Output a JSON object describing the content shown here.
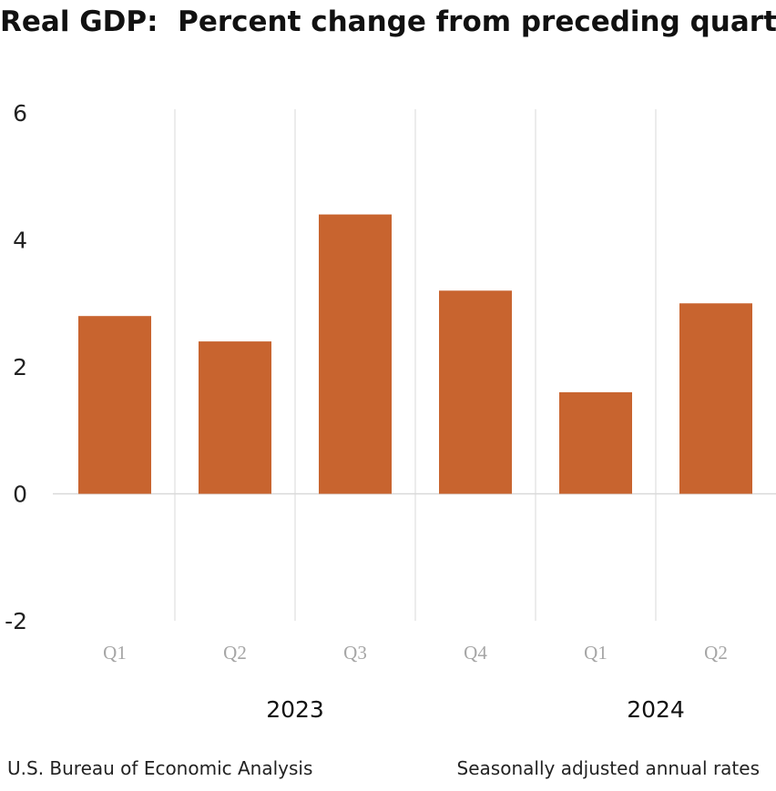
{
  "chart_data": {
    "type": "bar",
    "title": "Real GDP:  Percent change from preceding quarter",
    "categories": [
      "Q1",
      "Q2",
      "Q3",
      "Q4",
      "Q1",
      "Q2"
    ],
    "groups": [
      {
        "label": "2023",
        "categories": [
          "Q1",
          "Q2",
          "Q3",
          "Q4"
        ]
      },
      {
        "label": "2024",
        "categories": [
          "Q1",
          "Q2"
        ]
      }
    ],
    "values": [
      2.8,
      2.4,
      4.4,
      3.2,
      1.6,
      3.0
    ],
    "ylim": [
      -2,
      6
    ],
    "yticks": [
      6,
      4,
      2,
      0,
      -2
    ],
    "xlabel": "",
    "ylabel": "",
    "grid": "vertical separators between quarters",
    "bar_color": "#c8642f"
  },
  "footer": {
    "source": "U.S. Bureau of Economic Analysis",
    "note": "Seasonally adjusted annual rates"
  },
  "colors": {
    "tick_label_x": "#a6a6a6",
    "tick_label_y": "#222222",
    "gridline": "#d9d9d9"
  }
}
